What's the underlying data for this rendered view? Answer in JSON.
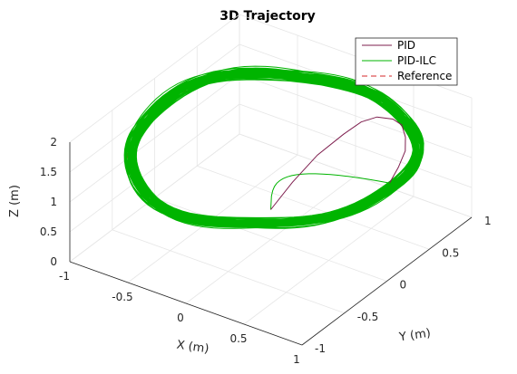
{
  "chart_data": {
    "type": "line",
    "projection": "3d",
    "title": "3D Trajectory",
    "xlabel": "X (m)",
    "ylabel": "Y (m)",
    "zlabel": "Z (m)",
    "xlim": [
      -1,
      1
    ],
    "ylim": [
      -1,
      1
    ],
    "zlim": [
      0,
      2
    ],
    "x_ticks": [
      "-1",
      "-0.5",
      "0",
      "0.5",
      "1"
    ],
    "y_ticks": [
      "-1",
      "-0.5",
      "0",
      "0.5",
      "1"
    ],
    "z_ticks": [
      "0",
      "0.5",
      "1",
      "1.5",
      "2"
    ],
    "grid": true,
    "box": true,
    "legend_position": "top-right",
    "series": [
      {
        "name": "PID",
        "color": "#7e1e4e",
        "style": "solid",
        "points": [
          [
            0,
            0,
            0.5
          ],
          [
            0.1,
            0.12,
            0.9
          ],
          [
            0.22,
            0.25,
            1.3
          ],
          [
            0.35,
            0.38,
            1.6
          ],
          [
            0.45,
            0.45,
            1.8
          ],
          [
            0.55,
            0.5,
            1.9
          ],
          [
            0.65,
            0.55,
            1.88
          ],
          [
            0.72,
            0.56,
            1.82
          ],
          [
            0.78,
            0.52,
            1.7
          ],
          [
            0.83,
            0.45,
            1.58
          ],
          [
            0.88,
            0.3,
            1.5
          ],
          [
            0.95,
            0.1,
            1.5
          ]
        ]
      },
      {
        "name": "PID-ILC",
        "color": "#00b400",
        "style": "solid",
        "shape": "circle",
        "radius": 1,
        "z_center": 1.5,
        "z_wobble": 0.05,
        "num_laps": 60,
        "climb_start": [
          0,
          0,
          0.5
        ],
        "climb_end": [
          0.95,
          0.1,
          1.5
        ]
      },
      {
        "name": "Reference",
        "color": "#d62728",
        "style": "dashed",
        "shape": "circle",
        "radius": 1,
        "z_center": 1.5
      }
    ]
  }
}
